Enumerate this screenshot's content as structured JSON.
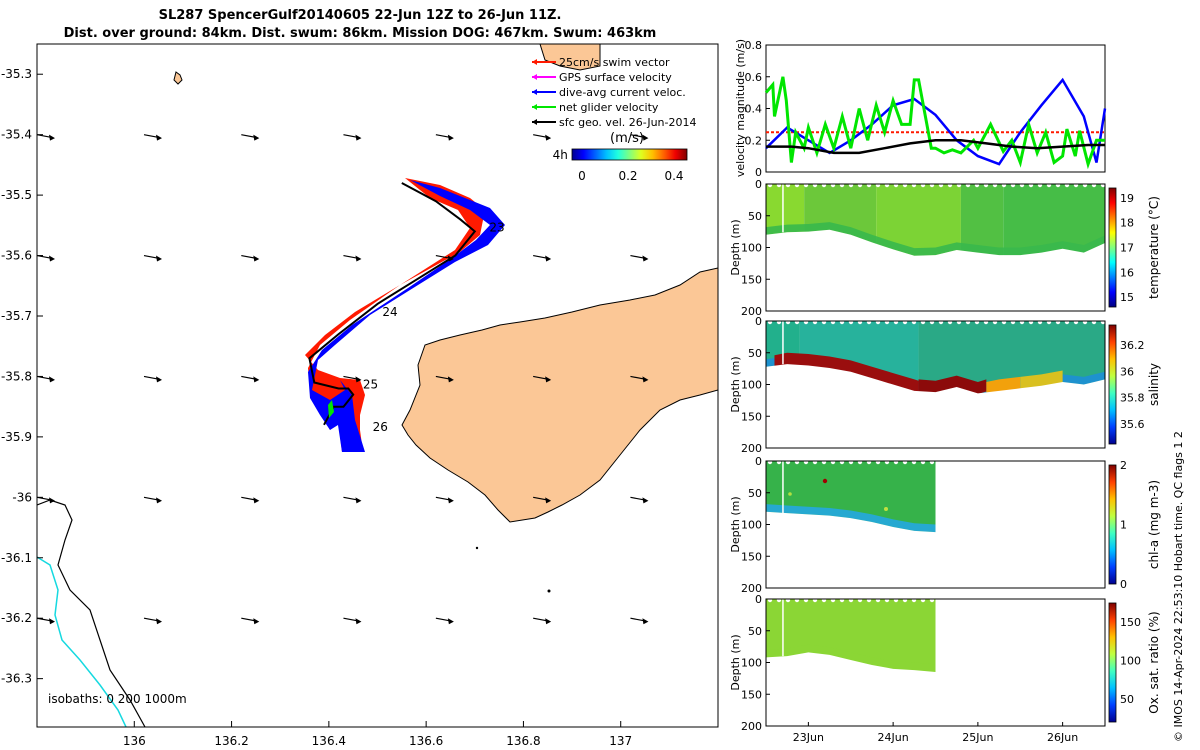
{
  "header": {
    "title_line1": "SL287 SpencerGulf20140605 22-Jun 12Z to 26-Jun 11Z.",
    "title_line2": "Dist. over ground: 84km. Dist. swum: 86km. Mission DOG: 467km. Swum: 463km"
  },
  "credit": "© IMOS 14-Apr-2024 22:53:10 Hobart time. QC flags 1  2",
  "colors": {
    "land": "#fbc796",
    "track_red": "#ff1a00",
    "track_blue": "#0000ff",
    "green": "#00e600",
    "isobath_cyan": "#16d9e0",
    "magenta": "#ff00ff"
  },
  "chart_data": [
    {
      "type": "scatter",
      "name": "glider-track-map",
      "xlabel": "",
      "ylabel": "",
      "xlim": [
        135.8,
        137.2
      ],
      "ylim": [
        -36.38,
        -35.25
      ],
      "x_ticks": [
        "136",
        "136.2",
        "136.4",
        "136.6",
        "136.8",
        "137"
      ],
      "y_ticks": [
        "-35.3",
        "-35.4",
        "-35.5",
        "-35.6",
        "-35.7",
        "-35.8",
        "-35.9",
        "-36",
        "-36.1",
        "-36.2",
        "-36.3"
      ],
      "track": [
        [
          136.55,
          -35.48
        ],
        [
          136.62,
          -35.51
        ],
        [
          136.67,
          -35.54
        ],
        [
          136.7,
          -35.56
        ],
        [
          136.66,
          -35.6
        ],
        [
          136.58,
          -35.64
        ],
        [
          136.5,
          -35.68
        ],
        [
          136.42,
          -35.73
        ],
        [
          136.36,
          -35.77
        ],
        [
          136.37,
          -35.81
        ],
        [
          136.42,
          -35.82
        ],
        [
          136.44,
          -35.82
        ],
        [
          136.45,
          -35.83
        ],
        [
          136.43,
          -35.85
        ],
        [
          136.41,
          -35.85
        ],
        [
          136.39,
          -35.88
        ]
      ],
      "day_labels": [
        {
          "text": "23",
          "lon": 136.73,
          "lat": -35.56
        },
        {
          "text": "24",
          "lon": 136.51,
          "lat": -35.7
        },
        {
          "text": "25",
          "lon": 136.47,
          "lat": -35.82
        },
        {
          "text": "26",
          "lon": 136.49,
          "lat": -35.89
        },
        {
          "text": "4h",
          "lon": 136.86,
          "lat": -35.44
        }
      ],
      "legend": [
        {
          "label": "25cm/s swim vector",
          "color": "#ff1a00"
        },
        {
          "label": "GPS surface velocity",
          "color": "#ff00ff"
        },
        {
          "label": "dive-avg current veloc.",
          "color": "#0000ff"
        },
        {
          "label": "net glider velocity",
          "color": "#00e600"
        },
        {
          "label": "sfc geo. vel. 26-Jun-2014",
          "color": "#000000"
        }
      ],
      "colorbar": {
        "label": "(m/s)",
        "ticks": [
          "0",
          "0.2",
          "0.4"
        ],
        "range": [
          0,
          0.5
        ]
      },
      "isobath_text": "isobaths: 0   200  1000m",
      "vector_rows": [
        -35.4,
        -35.6,
        -35.8,
        -36.0,
        -36.2
      ],
      "vector_cols": [
        135.8,
        136.02,
        136.22,
        136.43,
        136.62,
        136.82,
        137.02
      ]
    },
    {
      "type": "line",
      "name": "velocity-magnitude",
      "ylabel": "velocity magnitude (m/s)",
      "xlim": [
        22.5,
        26.5
      ],
      "ylim": [
        0,
        0.8
      ],
      "y_ticks": [
        "0",
        "0.2",
        "0.4",
        "0.6",
        "0.8"
      ],
      "series": [
        {
          "name": "swim vector",
          "color": "#ff1a00",
          "x": [
            22.5,
            26.5
          ],
          "y": [
            0.25,
            0.25
          ]
        },
        {
          "name": "dive-avg current",
          "color": "#0000ff",
          "x": [
            22.5,
            22.75,
            23.0,
            23.25,
            23.5,
            23.75,
            24.0,
            24.25,
            24.5,
            24.75,
            25.0,
            25.25,
            25.5,
            25.75,
            26.0,
            26.25,
            26.4,
            26.5
          ],
          "y": [
            0.15,
            0.28,
            0.2,
            0.12,
            0.2,
            0.3,
            0.42,
            0.46,
            0.36,
            0.2,
            0.1,
            0.05,
            0.25,
            0.42,
            0.58,
            0.35,
            0.06,
            0.4
          ]
        },
        {
          "name": "net glider",
          "color": "#00e600",
          "x": [
            22.5,
            22.58,
            22.6,
            22.7,
            22.74,
            22.8,
            22.85,
            22.9,
            22.95,
            23.0,
            23.1,
            23.2,
            23.3,
            23.4,
            23.5,
            23.6,
            23.7,
            23.8,
            23.9,
            24.0,
            24.1,
            24.2,
            24.25,
            24.3,
            24.45,
            24.5,
            24.6,
            24.7,
            24.8,
            24.95,
            25.0,
            25.15,
            25.3,
            25.4,
            25.5,
            25.6,
            25.7,
            25.8,
            25.9,
            26.0,
            26.05,
            26.15,
            26.2,
            26.3,
            26.4,
            26.5
          ],
          "y": [
            0.5,
            0.55,
            0.35,
            0.6,
            0.45,
            0.06,
            0.25,
            0.2,
            0.15,
            0.28,
            0.12,
            0.3,
            0.15,
            0.35,
            0.15,
            0.4,
            0.2,
            0.42,
            0.25,
            0.45,
            0.3,
            0.3,
            0.58,
            0.58,
            0.15,
            0.15,
            0.12,
            0.14,
            0.12,
            0.2,
            0.15,
            0.3,
            0.13,
            0.2,
            0.06,
            0.3,
            0.12,
            0.25,
            0.06,
            0.1,
            0.27,
            0.1,
            0.26,
            0.05,
            0.2,
            0.2
          ]
        },
        {
          "name": "sfc geo",
          "color": "#000000",
          "x": [
            22.5,
            22.8,
            23.0,
            23.3,
            23.6,
            23.9,
            24.2,
            24.5,
            24.8,
            25.1,
            25.4,
            25.7,
            26.0,
            26.3,
            26.5
          ],
          "y": [
            0.16,
            0.16,
            0.15,
            0.12,
            0.12,
            0.15,
            0.18,
            0.2,
            0.2,
            0.18,
            0.16,
            0.15,
            0.16,
            0.17,
            0.17
          ]
        }
      ]
    },
    {
      "type": "heatmap",
      "name": "temperature-section",
      "ylabel": "Depth (m)",
      "ylim": [
        0,
        200
      ],
      "y_ticks": [
        "0",
        "50",
        "100",
        "150",
        "200"
      ],
      "colorbar_label": "temperature (°C)",
      "colorbar_ticks": [
        "15",
        "16",
        "17",
        "18",
        "19"
      ],
      "xlim": [
        22.5,
        26.5
      ],
      "data_end": 26.5,
      "bottom_x": [
        22.5,
        22.75,
        23.0,
        23.25,
        23.5,
        23.75,
        24.0,
        24.25,
        24.5,
        24.75,
        25.0,
        25.25,
        25.5,
        25.75,
        26.0,
        26.25,
        26.5
      ],
      "bottom_d": [
        80,
        76,
        75,
        72,
        80,
        92,
        103,
        113,
        112,
        104,
        108,
        112,
        112,
        108,
        102,
        108,
        93
      ],
      "bands": [
        {
          "from": 22.5,
          "to": 22.95,
          "color": "#89d930"
        },
        {
          "from": 22.95,
          "to": 23.8,
          "color": "#6cc83a"
        },
        {
          "from": 23.8,
          "to": 24.8,
          "color": "#7cd335"
        },
        {
          "from": 24.8,
          "to": 25.3,
          "color": "#52c043"
        },
        {
          "from": 25.3,
          "to": 26.5,
          "color": "#46bd47"
        }
      ],
      "bottom_band": "#38b84d"
    },
    {
      "type": "heatmap",
      "name": "salinity-section",
      "ylabel": "Depth (m)",
      "ylim": [
        0,
        200
      ],
      "y_ticks": [
        "0",
        "50",
        "100",
        "150",
        "200"
      ],
      "colorbar_label": "salinity",
      "colorbar_ticks": [
        "35.6",
        "35.8",
        "36",
        "36.2"
      ],
      "xlim": [
        22.5,
        26.5
      ],
      "data_end": 26.5,
      "bottom_x": [
        22.5,
        22.75,
        23.0,
        23.25,
        23.5,
        23.75,
        24.0,
        24.25,
        24.5,
        24.75,
        25.0,
        25.25,
        25.5,
        25.75,
        26.0,
        26.25,
        26.5
      ],
      "bottom_d": [
        72,
        68,
        70,
        74,
        80,
        90,
        100,
        110,
        112,
        104,
        114,
        110,
        106,
        102,
        96,
        100,
        92
      ],
      "bands": [
        {
          "from": 22.5,
          "to": 22.9,
          "color": "#22b08c"
        },
        {
          "from": 22.9,
          "to": 24.3,
          "color": "#27b29c"
        },
        {
          "from": 24.3,
          "to": 26.5,
          "color": "#2aa986"
        }
      ],
      "hot_layer": [
        {
          "from": 22.6,
          "to": 24.3,
          "color": "#9a0e0e"
        },
        {
          "from": 24.3,
          "to": 25.1,
          "color": "#8c0a0a"
        },
        {
          "from": 25.1,
          "to": 25.5,
          "color": "#f2a10c"
        },
        {
          "from": 25.5,
          "to": 26.0,
          "color": "#d9c020"
        }
      ],
      "bottom_band": "#1d8fd6"
    },
    {
      "type": "heatmap",
      "name": "chlorophyll-section",
      "ylabel": "Depth (m)",
      "ylim": [
        0,
        200
      ],
      "y_ticks": [
        "0",
        "50",
        "100",
        "150",
        "200"
      ],
      "colorbar_label": "chl-a (mg m-3)",
      "colorbar_ticks": [
        "0",
        "1",
        "2"
      ],
      "xlim": [
        22.5,
        26.5
      ],
      "data_end": 24.5,
      "bottom_x": [
        22.5,
        22.75,
        23.0,
        23.25,
        23.5,
        23.75,
        24.0,
        24.25,
        24.5
      ],
      "bottom_d": [
        80,
        82,
        84,
        86,
        90,
        96,
        104,
        110,
        112
      ],
      "bands": [
        {
          "from": 22.5,
          "to": 24.5,
          "color": "#36b24a"
        }
      ],
      "bottom_band": "#25a7e0"
    },
    {
      "type": "heatmap",
      "name": "oxygen-section",
      "ylabel": "Depth (m)",
      "ylim": [
        0,
        200
      ],
      "y_ticks": [
        "0",
        "50",
        "100",
        "150",
        "200"
      ],
      "colorbar_label": "Ox. sat. ratio (%)",
      "colorbar_ticks": [
        "50",
        "100",
        "150"
      ],
      "xlim": [
        22.5,
        26.5
      ],
      "data_end": 24.5,
      "x_ticks": [
        "23Jun",
        "24Jun",
        "25Jun",
        "26Jun"
      ],
      "bottom_x": [
        22.5,
        22.75,
        23.0,
        23.25,
        23.5,
        23.75,
        24.0,
        24.25,
        24.5
      ],
      "bottom_d": [
        92,
        90,
        84,
        88,
        96,
        104,
        110,
        112,
        115
      ],
      "bands": [
        {
          "from": 22.5,
          "to": 24.5,
          "color": "#8bd635"
        }
      ],
      "bottom_band": "#8bd635"
    }
  ]
}
